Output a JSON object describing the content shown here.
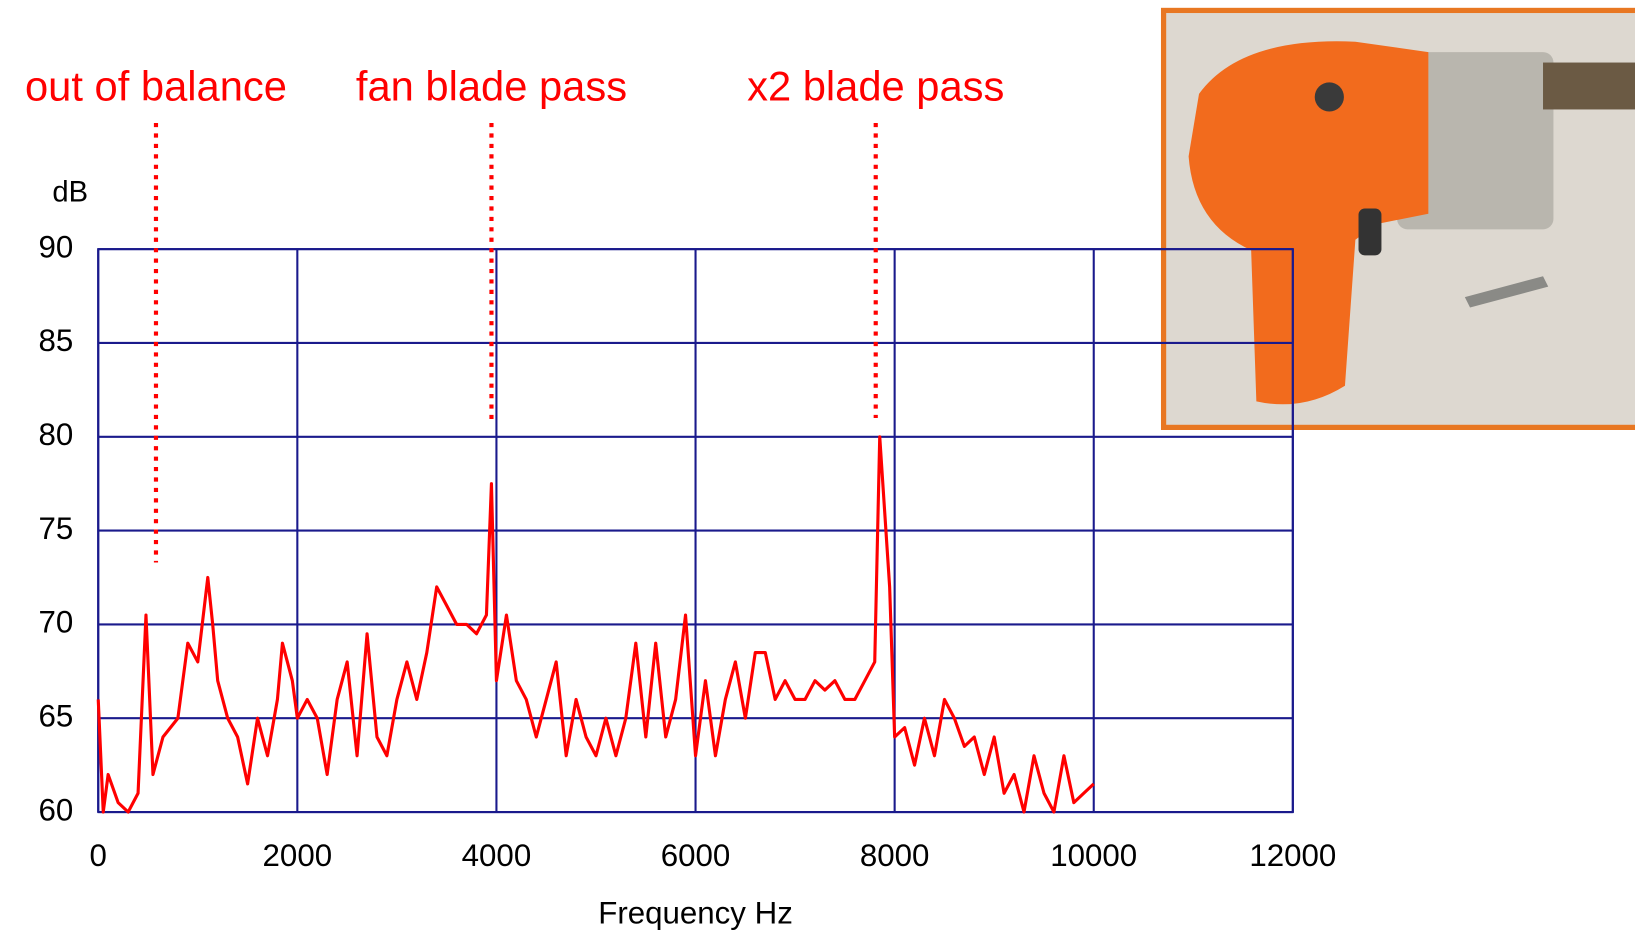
{
  "chart_data": {
    "type": "line",
    "x_label": "Frequency Hz",
    "y_label": "dB",
    "color": "#ff0000",
    "grid": true,
    "xlim": [
      0,
      12000
    ],
    "xticks": [
      0,
      2000,
      4000,
      6000,
      8000,
      10000,
      12000
    ],
    "ylim": [
      60,
      90
    ],
    "yticks": [
      60,
      65,
      70,
      75,
      80,
      85,
      90
    ],
    "annotations": [
      {
        "text": "out of balance",
        "x": 580,
        "y": 73.3
      },
      {
        "text": "fan blade pass",
        "x": 3950,
        "y": 80.8
      },
      {
        "text": "x2 blade pass",
        "x": 7810,
        "y": 81
      }
    ],
    "x": [
      0,
      50,
      100,
      200,
      300,
      400,
      480,
      550,
      650,
      800,
      900,
      1000,
      1100,
      1150,
      1200,
      1300,
      1400,
      1500,
      1600,
      1700,
      1800,
      1850,
      1950,
      2000,
      2100,
      2200,
      2300,
      2400,
      2500,
      2600,
      2700,
      2800,
      2900,
      3000,
      3100,
      3200,
      3300,
      3400,
      3500,
      3600,
      3700,
      3800,
      3900,
      3950,
      4000,
      4100,
      4200,
      4300,
      4400,
      4500,
      4600,
      4700,
      4800,
      4900,
      5000,
      5100,
      5200,
      5300,
      5400,
      5500,
      5600,
      5700,
      5800,
      5900,
      6000,
      6100,
      6200,
      6300,
      6400,
      6500,
      6600,
      6700,
      6800,
      6900,
      7000,
      7100,
      7200,
      7300,
      7400,
      7500,
      7600,
      7700,
      7800,
      7850,
      7950,
      8000,
      8100,
      8200,
      8300,
      8400,
      8500,
      8600,
      8700,
      8800,
      8900,
      9000,
      9100,
      9200,
      9300,
      9400,
      9500,
      9600,
      9700,
      9800,
      9900,
      10000
    ],
    "values": [
      66,
      60,
      62,
      60.5,
      60,
      61,
      70.5,
      62,
      64,
      65,
      69,
      68,
      72.5,
      70,
      67,
      65,
      64,
      61.5,
      65,
      63,
      66,
      69,
      67,
      65,
      66,
      65,
      62,
      66,
      68,
      63,
      69.5,
      64,
      63,
      66,
      68,
      66,
      68.5,
      72,
      71,
      70,
      70,
      69.5,
      70.5,
      77.5,
      67,
      70.5,
      67,
      66,
      64,
      66,
      68,
      63,
      66,
      64,
      63,
      65,
      63,
      65,
      69,
      64,
      69,
      64,
      66,
      70.5,
      63,
      67,
      63,
      66,
      68,
      65,
      68.5,
      68.5,
      66,
      67,
      66,
      66,
      67,
      66.5,
      67,
      66,
      66,
      67,
      68,
      80,
      72,
      64,
      64.5,
      62.5,
      65,
      63,
      66,
      65,
      63.5,
      64,
      62,
      64,
      61,
      62,
      60,
      63,
      61,
      60,
      63,
      60.5,
      61,
      61.5
    ]
  }
}
